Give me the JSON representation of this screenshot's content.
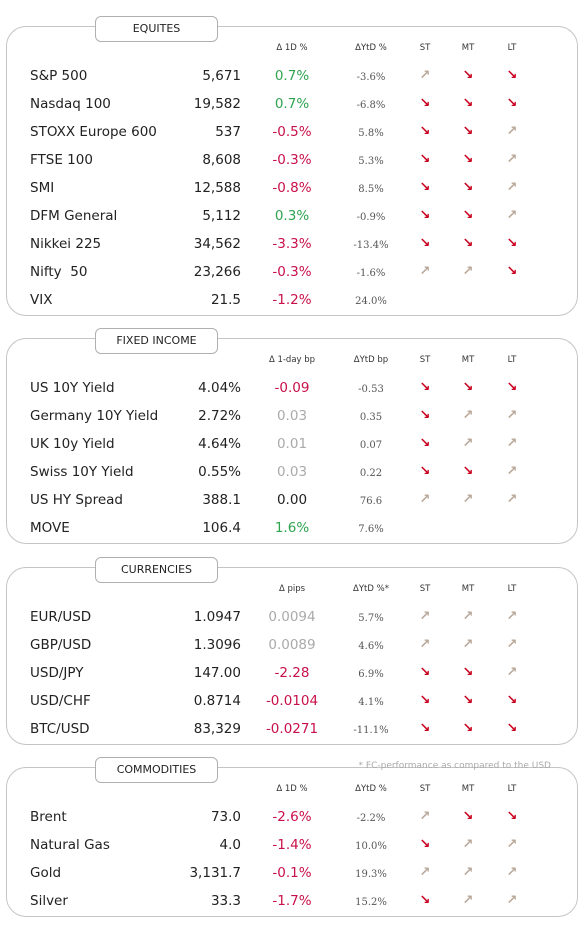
{
  "arrow_colors": {
    "↗": "#b9a899",
    "↘": "#c8001e"
  },
  "footnote": "* FC-performance as compared to the USD",
  "sections": [
    {
      "title": "EQUITES",
      "headers": [
        "Δ 1D %",
        "ΔYtD %",
        "ST",
        "MT",
        "LT"
      ],
      "rows": [
        {
          "name": "S&P 500",
          "value": "5,671",
          "change": "0.7%",
          "change_color": "#2ea44f",
          "ytd": "-3.6%",
          "st": "↗",
          "mt": "↘",
          "lt": "↘"
        },
        {
          "name": "Nasdaq 100",
          "value": "19,582",
          "change": "0.7%",
          "change_color": "#2ea44f",
          "ytd": "-6.8%",
          "st": "↘",
          "mt": "↘",
          "lt": "↘"
        },
        {
          "name": "STOXX Europe 600",
          "value": "537",
          "change": "-0.5%",
          "change_color": "#c8104a",
          "ytd": "5.8%",
          "st": "↘",
          "mt": "↘",
          "lt": "↗"
        },
        {
          "name": "FTSE 100",
          "value": "8,608",
          "change": "-0.3%",
          "change_color": "#c8104a",
          "ytd": "5.3%",
          "st": "↘",
          "mt": "↘",
          "lt": "↗"
        },
        {
          "name": "SMI",
          "value": "12,588",
          "change": "-0.8%",
          "change_color": "#c8104a",
          "ytd": "8.5%",
          "st": "↘",
          "mt": "↘",
          "lt": "↗"
        },
        {
          "name": "DFM General",
          "value": "5,112",
          "change": "0.3%",
          "change_color": "#2ea44f",
          "ytd": "-0.9%",
          "st": "↘",
          "mt": "↘",
          "lt": "↗"
        },
        {
          "name": "Nikkei 225",
          "value": "34,562",
          "change": "-3.3%",
          "change_color": "#c8104a",
          "ytd": "-13.4%",
          "st": "↘",
          "mt": "↘",
          "lt": "↘"
        },
        {
          "name": "Nifty  50",
          "value": "23,266",
          "change": "-0.3%",
          "change_color": "#c8104a",
          "ytd": "-1.6%",
          "st": "↗",
          "mt": "↗",
          "lt": "↘"
        },
        {
          "name": "VIX",
          "value": "21.5",
          "change": "-1.2%",
          "change_color": "#c8104a",
          "ytd": "24.0%",
          "st": null,
          "mt": null,
          "lt": null
        }
      ]
    },
    {
      "title": "FIXED INCOME",
      "headers": [
        "Δ 1-day bp",
        "ΔYtD bp",
        "ST",
        "MT",
        "LT"
      ],
      "rows": [
        {
          "name": "US 10Y Yield",
          "value": "4.04%",
          "change": "-0.09",
          "change_color": "#c8104a",
          "ytd": "-0.53",
          "st": "↘",
          "mt": "↘",
          "lt": "↘"
        },
        {
          "name": "Germany 10Y Yield",
          "value": "2.72%",
          "change": "0.03",
          "change_color": "#aaaaaa",
          "ytd": "0.35",
          "st": "↘",
          "mt": "↗",
          "lt": "↗"
        },
        {
          "name": "UK 10y Yield",
          "value": "4.64%",
          "change": "0.01",
          "change_color": "#aaaaaa",
          "ytd": "0.07",
          "st": "↘",
          "mt": "↗",
          "lt": "↗"
        },
        {
          "name": "Swiss 10Y Yield",
          "value": "0.55%",
          "change": "0.03",
          "change_color": "#aaaaaa",
          "ytd": "0.22",
          "st": "↘",
          "mt": "↘",
          "lt": "↗"
        },
        {
          "name": "US HY Spread",
          "value": "388.1",
          "change": "0.00",
          "change_color": "#222222",
          "ytd": "76.6",
          "st": "↗",
          "mt": "↗",
          "lt": "↗"
        },
        {
          "name": "MOVE",
          "value": "106.4",
          "change": "1.6%",
          "change_color": "#2ea44f",
          "ytd": "7.6%",
          "st": null,
          "mt": null,
          "lt": null
        }
      ]
    },
    {
      "title": "CURRENCIES",
      "headers": [
        "Δ pips",
        "ΔYtD %*",
        "ST",
        "MT",
        "LT"
      ],
      "rows": [
        {
          "name": "EUR/USD",
          "value": "1.0947",
          "change": "0.0094",
          "change_color": "#aaaaaa",
          "ytd": "5.7%",
          "st": "↗",
          "mt": "↗",
          "lt": "↗"
        },
        {
          "name": "GBP/USD",
          "value": "1.3096",
          "change": "0.0089",
          "change_color": "#aaaaaa",
          "ytd": "4.6%",
          "st": "↗",
          "mt": "↗",
          "lt": "↗"
        },
        {
          "name": "USD/JPY",
          "value": "147.00",
          "change": "-2.28",
          "change_color": "#c8104a",
          "ytd": "6.9%",
          "st": "↘",
          "mt": "↘",
          "lt": "↗"
        },
        {
          "name": "USD/CHF",
          "value": "0.8714",
          "change": "-0.0104",
          "change_color": "#c8104a",
          "ytd": "4.1%",
          "st": "↘",
          "mt": "↘",
          "lt": "↘"
        },
        {
          "name": "BTC/USD",
          "value": "83,329",
          "change": "-0.0271",
          "change_color": "#c8104a",
          "ytd": "-11.1%",
          "st": "↘",
          "mt": "↘",
          "lt": "↘"
        }
      ]
    },
    {
      "title": "COMMODITIES",
      "headers": [
        "Δ 1D %",
        "ΔYtD %",
        "ST",
        "MT",
        "LT"
      ],
      "rows": [
        {
          "name": "Brent",
          "value": "73.0",
          "change": "-2.6%",
          "change_color": "#c8104a",
          "ytd": "-2.2%",
          "st": "↗",
          "mt": "↘",
          "lt": "↘"
        },
        {
          "name": "Natural Gas",
          "value": "4.0",
          "change": "-1.4%",
          "change_color": "#c8104a",
          "ytd": "10.0%",
          "st": "↘",
          "mt": "↗",
          "lt": "↗"
        },
        {
          "name": "Gold",
          "value": "3,131.7",
          "change": "-0.1%",
          "change_color": "#c8104a",
          "ytd": "19.3%",
          "st": "↗",
          "mt": "↗",
          "lt": "↗"
        },
        {
          "name": "Silver",
          "value": "33.3",
          "change": "-1.7%",
          "change_color": "#c8104a",
          "ytd": "15.2%",
          "st": "↘",
          "mt": "↗",
          "lt": "↗"
        }
      ]
    }
  ]
}
